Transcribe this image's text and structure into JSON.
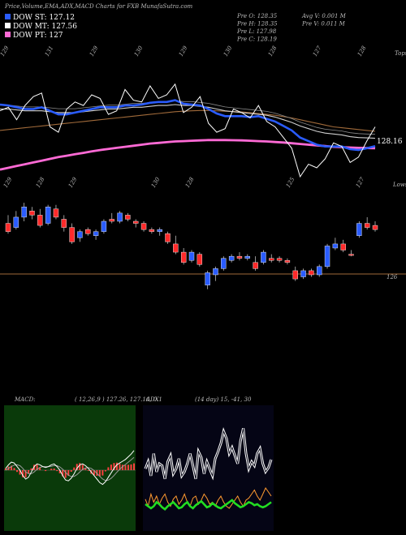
{
  "header": {
    "title": "Price,Volume,EMA,ADX,MACD Charts for FXB MunafaSutra.com",
    "legend": [
      {
        "label": "DOW ST: 127.12",
        "color": "#2a5cff"
      },
      {
        "label": "DOW MT: 127.56",
        "color": "#ffffff"
      },
      {
        "label": "DOW PT: 127",
        "color": "#ff6ad5"
      }
    ],
    "stats": {
      "col1": [
        "Pre  O: 128.35",
        "Pre  H: 128.35",
        "Pre  L: 127.98",
        "Pre  C: 128.19"
      ],
      "col2": [
        "Avg V: 0.001 M",
        "Pre  V: 0.011 M"
      ]
    }
  },
  "chart_data": [
    {
      "type": "line",
      "name": "ema-panel",
      "top_numbers": [
        "129",
        "131",
        "129",
        "130",
        "129",
        "130",
        "128",
        "127",
        "128"
      ],
      "bottom_numbers": [
        "129",
        "128",
        "129",
        "130",
        "128",
        "125",
        "127"
      ],
      "corner_top": "Tops",
      "corner_bottom": "Lows",
      "price_label": "128.16",
      "x": [
        0,
        1,
        2,
        3,
        4,
        5,
        6,
        7,
        8,
        9,
        10,
        11,
        12,
        13,
        14,
        15,
        16,
        17,
        18,
        19,
        20,
        21,
        22,
        23,
        24,
        25,
        26,
        27,
        28,
        29,
        30,
        31,
        32,
        33,
        34,
        35,
        36,
        37,
        38,
        39,
        40,
        41,
        42,
        43,
        44,
        45
      ],
      "series": [
        {
          "role": "price",
          "color": "#ffffff",
          "values": [
            129.1,
            129.3,
            128.6,
            129.4,
            129.9,
            130.1,
            128.2,
            127.9,
            129.2,
            129.6,
            129.4,
            130.0,
            129.8,
            128.9,
            129.1,
            130.3,
            129.7,
            129.6,
            130.5,
            129.8,
            130.0,
            130.6,
            129.0,
            129.3,
            129.9,
            128.4,
            127.9,
            128.1,
            129.2,
            129.0,
            128.7,
            129.4,
            128.5,
            128.2,
            127.6,
            127.0,
            125.4,
            126.1,
            125.9,
            126.4,
            127.3,
            127.1,
            126.2,
            126.5,
            127.4,
            128.2
          ]
        },
        {
          "role": "ema-short",
          "color": "#2a5cff",
          "values": [
            129.45,
            129.4,
            129.3,
            129.2,
            129.2,
            129.3,
            129.1,
            128.9,
            128.9,
            129.0,
            129.1,
            129.2,
            129.3,
            129.3,
            129.3,
            129.4,
            129.4,
            129.45,
            129.55,
            129.6,
            129.6,
            129.7,
            129.5,
            129.45,
            129.4,
            129.2,
            128.95,
            128.8,
            128.8,
            128.8,
            128.75,
            128.8,
            128.65,
            128.5,
            128.25,
            128.0,
            127.6,
            127.4,
            127.2,
            127.1,
            127.1,
            127.1,
            126.95,
            126.9,
            127.0,
            127.12
          ]
        },
        {
          "role": "ema-mid",
          "color": "#cfcfcf",
          "values": [
            129.2,
            129.2,
            129.15,
            129.1,
            129.1,
            129.1,
            129.05,
            129.0,
            129.0,
            129.0,
            129.05,
            129.1,
            129.15,
            129.2,
            129.2,
            129.25,
            129.3,
            129.3,
            129.35,
            129.4,
            129.4,
            129.45,
            129.4,
            129.4,
            129.35,
            129.3,
            129.2,
            129.1,
            129.05,
            129.0,
            128.95,
            128.9,
            128.85,
            128.75,
            128.6,
            128.45,
            128.25,
            128.1,
            127.95,
            127.85,
            127.8,
            127.75,
            127.65,
            127.6,
            127.58,
            127.56
          ]
        },
        {
          "role": "ema-long",
          "color": "#a06a3a",
          "values": [
            128.0,
            128.05,
            128.1,
            128.15,
            128.2,
            128.25,
            128.3,
            128.35,
            128.4,
            128.45,
            128.5,
            128.55,
            128.6,
            128.65,
            128.7,
            128.75,
            128.8,
            128.85,
            128.9,
            128.95,
            129.0,
            129.05,
            129.08,
            129.1,
            129.12,
            129.12,
            129.1,
            129.08,
            129.06,
            129.04,
            129.0,
            128.95,
            128.9,
            128.85,
            128.78,
            128.7,
            128.6,
            128.5,
            128.4,
            128.3,
            128.2,
            128.15,
            128.1,
            128.05,
            128.0,
            127.95
          ]
        },
        {
          "role": "ema-xlong",
          "color": "#ff6ad5",
          "values": [
            125.8,
            125.9,
            126.0,
            126.1,
            126.2,
            126.3,
            126.4,
            126.5,
            126.58,
            126.66,
            126.74,
            126.82,
            126.9,
            126.96,
            127.02,
            127.08,
            127.14,
            127.2,
            127.26,
            127.3,
            127.34,
            127.38,
            127.4,
            127.42,
            127.44,
            127.46,
            127.46,
            127.46,
            127.45,
            127.44,
            127.42,
            127.4,
            127.38,
            127.35,
            127.32,
            127.28,
            127.24,
            127.2,
            127.16,
            127.12,
            127.08,
            127.06,
            127.04,
            127.02,
            127.01,
            127.0
          ]
        }
      ]
    },
    {
      "type": "bar",
      "name": "candles",
      "level_label": "126",
      "candles": [
        {
          "o": 129.2,
          "h": 129.6,
          "l": 128.7,
          "c": 128.8,
          "up": false
        },
        {
          "o": 129.0,
          "h": 129.8,
          "l": 128.9,
          "c": 129.5,
          "up": true
        },
        {
          "o": 129.5,
          "h": 130.2,
          "l": 129.3,
          "c": 130.0,
          "up": true
        },
        {
          "o": 129.8,
          "h": 130.0,
          "l": 129.4,
          "c": 129.6,
          "up": false
        },
        {
          "o": 129.6,
          "h": 129.9,
          "l": 129.0,
          "c": 129.1,
          "up": false
        },
        {
          "o": 129.2,
          "h": 130.1,
          "l": 129.1,
          "c": 130.0,
          "up": true
        },
        {
          "o": 129.9,
          "h": 130.1,
          "l": 129.4,
          "c": 129.5,
          "up": false
        },
        {
          "o": 129.4,
          "h": 129.6,
          "l": 128.8,
          "c": 129.0,
          "up": false
        },
        {
          "o": 129.0,
          "h": 129.2,
          "l": 128.2,
          "c": 128.3,
          "up": false
        },
        {
          "o": 128.5,
          "h": 128.9,
          "l": 128.3,
          "c": 128.8,
          "up": true
        },
        {
          "o": 128.9,
          "h": 129.0,
          "l": 128.6,
          "c": 128.7,
          "up": false
        },
        {
          "o": 128.6,
          "h": 128.9,
          "l": 128.4,
          "c": 128.8,
          "up": true
        },
        {
          "o": 128.8,
          "h": 129.4,
          "l": 128.7,
          "c": 129.3,
          "up": true
        },
        {
          "o": 129.4,
          "h": 129.7,
          "l": 129.2,
          "c": 129.3,
          "up": false
        },
        {
          "o": 129.3,
          "h": 129.8,
          "l": 129.2,
          "c": 129.7,
          "up": true
        },
        {
          "o": 129.6,
          "h": 129.7,
          "l": 129.3,
          "c": 129.4,
          "up": false
        },
        {
          "o": 129.3,
          "h": 129.4,
          "l": 129.0,
          "c": 129.2,
          "up": false
        },
        {
          "o": 129.2,
          "h": 129.3,
          "l": 128.8,
          "c": 128.9,
          "up": false
        },
        {
          "o": 128.9,
          "h": 129.0,
          "l": 128.7,
          "c": 128.8,
          "up": false
        },
        {
          "o": 128.8,
          "h": 129.0,
          "l": 128.6,
          "c": 128.9,
          "up": true
        },
        {
          "o": 128.7,
          "h": 128.8,
          "l": 128.2,
          "c": 128.3,
          "up": false
        },
        {
          "o": 128.2,
          "h": 128.6,
          "l": 127.7,
          "c": 127.8,
          "up": false
        },
        {
          "o": 127.8,
          "h": 128.0,
          "l": 127.2,
          "c": 127.3,
          "up": false
        },
        {
          "o": 127.4,
          "h": 127.9,
          "l": 127.3,
          "c": 127.8,
          "up": true
        },
        {
          "o": 127.7,
          "h": 127.8,
          "l": 127.1,
          "c": 127.2,
          "up": false
        },
        {
          "o": 126.2,
          "h": 126.9,
          "l": 126.0,
          "c": 126.8,
          "up": true
        },
        {
          "o": 126.7,
          "h": 127.1,
          "l": 126.4,
          "c": 127.0,
          "up": true
        },
        {
          "o": 127.0,
          "h": 127.6,
          "l": 126.9,
          "c": 127.5,
          "up": true
        },
        {
          "o": 127.4,
          "h": 127.7,
          "l": 127.3,
          "c": 127.6,
          "up": true
        },
        {
          "o": 127.6,
          "h": 127.8,
          "l": 127.4,
          "c": 127.5,
          "up": false
        },
        {
          "o": 127.5,
          "h": 127.7,
          "l": 127.4,
          "c": 127.6,
          "up": true
        },
        {
          "o": 127.3,
          "h": 127.6,
          "l": 126.9,
          "c": 127.0,
          "up": false
        },
        {
          "o": 127.3,
          "h": 127.9,
          "l": 127.2,
          "c": 127.8,
          "up": true
        },
        {
          "o": 127.5,
          "h": 127.7,
          "l": 127.3,
          "c": 127.4,
          "up": false
        },
        {
          "o": 127.5,
          "h": 127.6,
          "l": 127.3,
          "c": 127.4,
          "up": false
        },
        {
          "o": 127.4,
          "h": 127.5,
          "l": 127.2,
          "c": 127.3,
          "up": false
        },
        {
          "o": 126.9,
          "h": 127.1,
          "l": 126.4,
          "c": 126.5,
          "up": false
        },
        {
          "o": 126.6,
          "h": 127.0,
          "l": 126.5,
          "c": 126.9,
          "up": true
        },
        {
          "o": 126.9,
          "h": 127.0,
          "l": 126.6,
          "c": 126.7,
          "up": false
        },
        {
          "o": 126.7,
          "h": 127.2,
          "l": 126.6,
          "c": 127.1,
          "up": true
        },
        {
          "o": 127.1,
          "h": 128.2,
          "l": 127.0,
          "c": 128.1,
          "up": true
        },
        {
          "o": 128.0,
          "h": 128.5,
          "l": 127.9,
          "c": 128.2,
          "up": true
        },
        {
          "o": 128.2,
          "h": 128.4,
          "l": 127.8,
          "c": 127.9,
          "up": false
        },
        {
          "o": 127.7,
          "h": 127.9,
          "l": 127.6,
          "c": 127.7,
          "up": false
        },
        {
          "o": 128.6,
          "h": 129.3,
          "l": 128.5,
          "c": 129.2,
          "up": true
        },
        {
          "o": 129.2,
          "h": 129.5,
          "l": 128.9,
          "c": 129.0,
          "up": false
        },
        {
          "o": 129.1,
          "h": 129.3,
          "l": 128.8,
          "c": 128.9,
          "up": false
        }
      ],
      "ylim": [
        125.4,
        130.6
      ]
    },
    {
      "type": "line",
      "name": "macd-panel",
      "label": "MACD:",
      "values_text": "( 12,26,9 ) 127.26,  127.16,  0.1",
      "bg": "#0a3a0a",
      "series": [
        {
          "role": "macd",
          "color": "#ffffff",
          "values": [
            0.1,
            0.3,
            0.45,
            0.4,
            0.2,
            0.0,
            -0.3,
            -0.5,
            -0.4,
            -0.1,
            0.2,
            0.35,
            0.3,
            0.2,
            0.15,
            0.2,
            0.3,
            0.35,
            0.2,
            0.0,
            -0.3,
            -0.55,
            -0.6,
            -0.45,
            -0.2,
            0.1,
            0.3,
            0.35,
            0.25,
            0.1,
            -0.1,
            -0.3,
            -0.5,
            -0.7,
            -0.8,
            -0.65,
            -0.4,
            -0.15,
            0.1,
            0.3,
            0.4,
            0.5,
            0.6,
            0.75,
            0.9,
            1.1
          ]
        },
        {
          "role": "signal",
          "color": "#9a9a9a",
          "values": [
            0.0,
            0.1,
            0.2,
            0.28,
            0.3,
            0.25,
            0.1,
            -0.1,
            -0.2,
            -0.2,
            -0.1,
            0.05,
            0.15,
            0.2,
            0.2,
            0.2,
            0.22,
            0.26,
            0.25,
            0.18,
            0.05,
            -0.12,
            -0.28,
            -0.36,
            -0.35,
            -0.25,
            -0.1,
            0.05,
            0.12,
            0.14,
            0.1,
            -0.02,
            -0.18,
            -0.35,
            -0.5,
            -0.58,
            -0.56,
            -0.46,
            -0.3,
            -0.12,
            0.05,
            0.2,
            0.32,
            0.45,
            0.58,
            0.72
          ]
        },
        {
          "role": "histogram",
          "color": "#ff4040",
          "values": [
            0.1,
            0.2,
            0.25,
            0.12,
            -0.1,
            -0.25,
            -0.4,
            -0.4,
            -0.2,
            0.1,
            0.3,
            0.3,
            0.15,
            0.0,
            -0.05,
            0.0,
            0.08,
            0.09,
            -0.05,
            -0.18,
            -0.35,
            -0.43,
            -0.32,
            -0.09,
            0.15,
            0.35,
            0.4,
            0.3,
            0.13,
            -0.04,
            -0.2,
            -0.28,
            -0.32,
            -0.35,
            -0.3,
            -0.07,
            0.16,
            0.31,
            0.4,
            0.42,
            0.35,
            0.3,
            0.28,
            0.3,
            0.32,
            0.38
          ]
        }
      ]
    },
    {
      "type": "line",
      "name": "adx-panel",
      "label": "ADX",
      "values_text": "(14 day)  15,  -41,  30",
      "bg": "#050515",
      "ylim": [
        0,
        100
      ],
      "series": [
        {
          "role": "di-minus",
          "color": "#ffffff",
          "values": [
            55,
            62,
            48,
            70,
            52,
            60,
            58,
            45,
            62,
            68,
            50,
            55,
            65,
            48,
            52,
            60,
            70,
            58,
            45,
            72,
            66,
            50,
            62,
            55,
            48,
            65,
            72,
            80,
            92,
            85,
            70,
            76,
            68,
            60,
            82,
            95,
            70,
            55,
            62,
            58,
            70,
            75,
            60,
            52,
            56,
            64
          ]
        },
        {
          "role": "di-plus",
          "color": "#ff9a30",
          "values": [
            25,
            18,
            30,
            22,
            28,
            20,
            26,
            30,
            22,
            18,
            25,
            28,
            20,
            24,
            30,
            22,
            18,
            26,
            28,
            20,
            24,
            30,
            26,
            20,
            22,
            18,
            24,
            28,
            22,
            18,
            16,
            20,
            24,
            28,
            22,
            18,
            24,
            26,
            30,
            34,
            28,
            24,
            30,
            36,
            32,
            28
          ]
        },
        {
          "role": "adx",
          "color": "#22dd22",
          "values": [
            20,
            18,
            16,
            18,
            22,
            20,
            17,
            15,
            18,
            20,
            22,
            19,
            16,
            17,
            20,
            22,
            18,
            16,
            19,
            21,
            23,
            20,
            17,
            18,
            21,
            19,
            17,
            16,
            18,
            20,
            22,
            24,
            21,
            19,
            17,
            18,
            20,
            22,
            21,
            19,
            20,
            18,
            17,
            18,
            20,
            22
          ]
        }
      ]
    }
  ]
}
